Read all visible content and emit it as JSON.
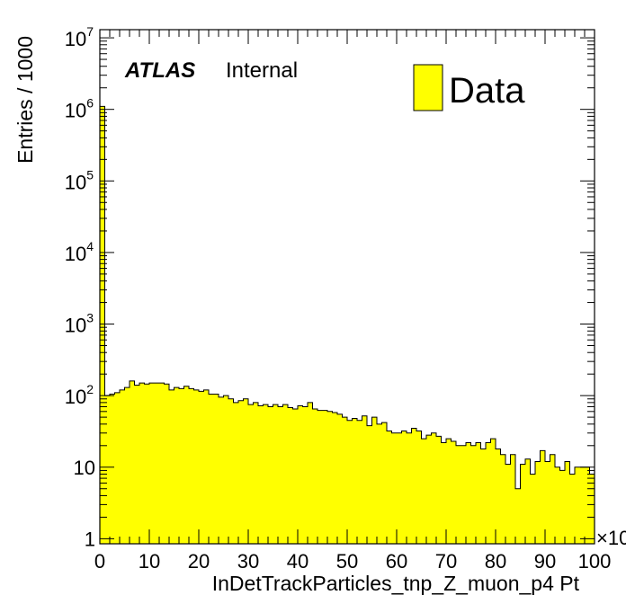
{
  "chart_data": {
    "type": "bar",
    "histogram": true,
    "xlabel": "InDetTrackParticles_tnp_Z_muon_p4 Pt",
    "ylabel": "Entries / 1000",
    "x_multiplier": "×10",
    "xlim": [
      0,
      100
    ],
    "ylim": [
      0.85,
      13000000
    ],
    "y_scale": "log",
    "bin_width": 1,
    "x_ticks": [
      "0",
      "10",
      "20",
      "30",
      "40",
      "50",
      "60",
      "70",
      "80",
      "90",
      "100"
    ],
    "y_ticks": [
      {
        "value": 1,
        "base": "1",
        "exp": ""
      },
      {
        "value": 10,
        "base": "10",
        "exp": ""
      },
      {
        "value": 100,
        "base": "10",
        "exp": "2"
      },
      {
        "value": 1000,
        "base": "10",
        "exp": "3"
      },
      {
        "value": 10000,
        "base": "10",
        "exp": "4"
      },
      {
        "value": 100000,
        "base": "10",
        "exp": "5"
      },
      {
        "value": 1000000,
        "base": "10",
        "exp": "6"
      },
      {
        "value": 10000000,
        "base": "10",
        "exp": "7"
      }
    ],
    "label_atlas": "ATLAS",
    "label_status": "Internal",
    "legend": [
      {
        "name": "Data",
        "color": "#ffff00"
      }
    ],
    "legend_position": "top-right",
    "fill_color": "#ffff00",
    "line_color": "#000000",
    "series": [
      {
        "name": "Data",
        "values": [
          1100000,
          100,
          105,
          110,
          120,
          130,
          160,
          140,
          150,
          145,
          150,
          150,
          150,
          145,
          120,
          130,
          125,
          135,
          125,
          120,
          115,
          120,
          105,
          105,
          95,
          100,
          90,
          80,
          85,
          90,
          75,
          80,
          72,
          75,
          70,
          75,
          70,
          75,
          68,
          65,
          72,
          70,
          80,
          65,
          62,
          62,
          60,
          58,
          55,
          50,
          45,
          48,
          45,
          52,
          38,
          50,
          40,
          42,
          32,
          30,
          30,
          32,
          30,
          35,
          32,
          25,
          28,
          30,
          27,
          22,
          25,
          23,
          20,
          20,
          22,
          20,
          22,
          18,
          22,
          25,
          18,
          15,
          11,
          15,
          5,
          11,
          13,
          8,
          12,
          17,
          12,
          15,
          10,
          9,
          12,
          8,
          10,
          10,
          10,
          8
        ]
      }
    ]
  }
}
